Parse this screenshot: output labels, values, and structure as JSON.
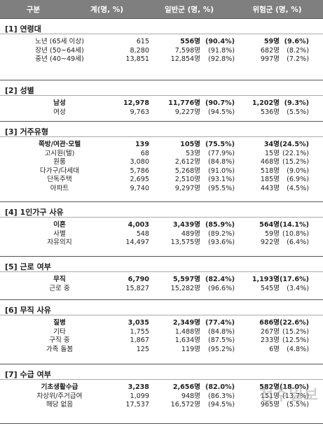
{
  "header": {
    "col0": "구분",
    "col1": "계(명, %)",
    "col2": "일반군 (명, %)",
    "col3": "위험군 (명, %)"
  },
  "sections": [
    {
      "title": "[1] 연령대",
      "rows": [
        {
          "label": "노년 (65세 이상)",
          "total": "615",
          "gen": "556명",
          "gen_pct": "(90.4%)",
          "risk": "59명",
          "risk_pct": "(9.6%)",
          "bold": false,
          "bold_cols": true
        },
        {
          "label": "장년 (50~64세)",
          "total": "8,280",
          "gen": "7,598명",
          "gen_pct": "(91.8%)",
          "risk": "682명",
          "risk_pct": "(8.2%)",
          "bold": false
        },
        {
          "label": "중년 (40~49세)",
          "total": "13,851",
          "gen": "12,854명",
          "gen_pct": "(92.8%)",
          "risk": "997명",
          "risk_pct": "(7.2%)",
          "bold": false
        }
      ]
    },
    {
      "title": "[2] 성별",
      "rows": [
        {
          "label": "남성",
          "total": "12,978",
          "gen": "11,776명",
          "gen_pct": "(90.7%)",
          "risk": "1,202명",
          "risk_pct": "(9.3%)",
          "bold": true
        },
        {
          "label": "여성",
          "total": "9,763",
          "gen": "9,227명",
          "gen_pct": "(94.5%)",
          "risk": "536명",
          "risk_pct": "(5.5%)",
          "bold": false
        }
      ]
    },
    {
      "title": "[3] 거주유형",
      "rows": [
        {
          "label": "쪽방/여관·모텔",
          "total": "139",
          "gen": "105명",
          "gen_pct": "(75.5%)",
          "risk": "34명",
          "risk_pct": "(24.5%)",
          "bold": true
        },
        {
          "label": "고시원(텔)",
          "total": "68",
          "gen": "53명",
          "gen_pct": "(77.9%)",
          "risk": "15명",
          "risk_pct": "(22.1%)",
          "bold": false
        },
        {
          "label": "원룸",
          "total": "3,080",
          "gen": "2,612명",
          "gen_pct": "(84.8%)",
          "risk": "468명",
          "risk_pct": "(15.2%)",
          "bold": false
        },
        {
          "label": "다가구/다세대",
          "total": "5,786",
          "gen": "5,268명",
          "gen_pct": "(91.0%)",
          "risk": "518명",
          "risk_pct": "(9.0%)",
          "bold": false
        },
        {
          "label": "단독주택",
          "total": "2,695",
          "gen": "2,510명",
          "gen_pct": "(93.1%)",
          "risk": "185명",
          "risk_pct": "(6.9%)",
          "bold": false
        },
        {
          "label": "아파트",
          "total": "9,740",
          "gen": "9,297명",
          "gen_pct": "(95.5%)",
          "risk": "443명",
          "risk_pct": "(4.5%)",
          "bold": false
        }
      ]
    },
    {
      "title": "[4] 1인가구 사유",
      "rows": [
        {
          "label": "이혼",
          "total": "4,003",
          "gen": "3,439명",
          "gen_pct": "(85.9%)",
          "risk": "564명",
          "risk_pct": "(14.1%)",
          "bold": true
        },
        {
          "label": "사별",
          "total": "548",
          "gen": "489명",
          "gen_pct": "(89.2%)",
          "risk": "59명",
          "risk_pct": "(10.8%)",
          "bold": false
        },
        {
          "label": "자유의지",
          "total": "14,497",
          "gen": "13,575명",
          "gen_pct": "(93.6%)",
          "risk": "922명",
          "risk_pct": "(6.4%)",
          "bold": false
        }
      ]
    },
    {
      "title": "[5] 근로 여부",
      "rows": [
        {
          "label": "무직",
          "total": "6,790",
          "gen": "5,597명",
          "gen_pct": "(82.4%)",
          "risk": "1,193명",
          "risk_pct": "(17.6%)",
          "bold": true
        },
        {
          "label": "근로 중",
          "total": "15,827",
          "gen": "15,282명",
          "gen_pct": "(96.6%)",
          "risk": "545명",
          "risk_pct": "(3.4%)",
          "bold": false
        }
      ]
    },
    {
      "title": "[6] 무직 사유",
      "rows": [
        {
          "label": "질병",
          "total": "3,035",
          "gen": "2,349명",
          "gen_pct": "(77.4%)",
          "risk": "686명",
          "risk_pct": "(22.6%)",
          "bold": true
        },
        {
          "label": "기타",
          "total": "1,755",
          "gen": "1,488명",
          "gen_pct": "(84.8%)",
          "risk": "267명",
          "risk_pct": "(15.2%)",
          "bold": false
        },
        {
          "label": "구직 중",
          "total": "1,867",
          "gen": "1,634명",
          "gen_pct": "(87.5%)",
          "risk": "233명",
          "risk_pct": "(12.5%)",
          "bold": false
        },
        {
          "label": "가족 돌봄",
          "total": "125",
          "gen": "119명",
          "gen_pct": "(95.2%)",
          "risk": "6명",
          "risk_pct": "(4.8%)",
          "bold": false
        }
      ]
    },
    {
      "title": "[7] 수급 여부",
      "rows": [
        {
          "label": "기초생활수급",
          "total": "3,238",
          "gen": "2,656명",
          "gen_pct": "(82.0%)",
          "risk": "582명",
          "risk_pct": "(18.0%)",
          "bold": true
        },
        {
          "label": "차상위/주거급여",
          "total": "1,099",
          "gen": "948명",
          "gen_pct": "(86.3%)",
          "risk": "151명",
          "risk_pct": "(13.7%)",
          "bold": false
        },
        {
          "label": "해당 없음",
          "total": "17,537",
          "gen": "16,572명",
          "gen_pct": "(94.5%)",
          "risk": "965명",
          "risk_pct": "(5.5%)",
          "bold": false
        }
      ]
    }
  ],
  "watermark": "청주일보"
}
